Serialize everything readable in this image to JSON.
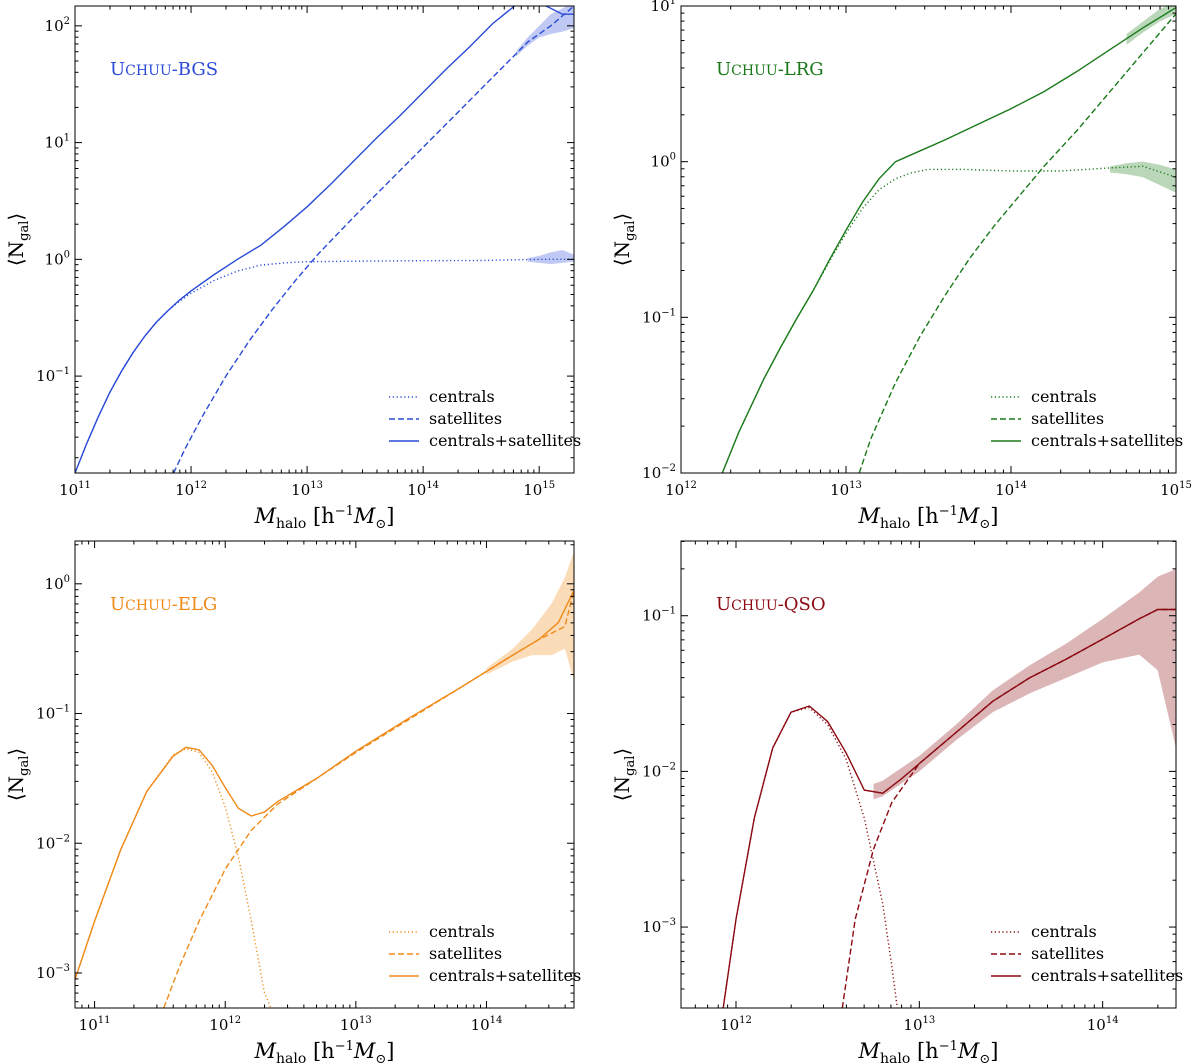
{
  "chart_data": [
    {
      "type": "line",
      "title": "Uchuu-BGS",
      "title_color": "#2a4bd7",
      "color": "#2a4bd7",
      "xlabel_parts": [
        "M",
        "halo",
        " [h",
        "−1",
        "M",
        "⊙",
        "]"
      ],
      "ylabel_parts": [
        "⟨N",
        "gal",
        "⟩"
      ],
      "xscale": "log",
      "yscale": "log",
      "xlim_log10": [
        11,
        15.3
      ],
      "ylim_log10": [
        -1.83,
        2.17
      ],
      "x_tick_labels": [
        {
          "base": "10",
          "exp": "11",
          "log": 11
        },
        {
          "base": "10",
          "exp": "12",
          "log": 12
        },
        {
          "base": "10",
          "exp": "13",
          "log": 13
        },
        {
          "base": "10",
          "exp": "14",
          "log": 14
        },
        {
          "base": "10",
          "exp": "15",
          "log": 15
        }
      ],
      "y_tick_labels": [
        {
          "base": "10",
          "exp": "−1",
          "log": -1
        },
        {
          "base": "10",
          "exp": "0",
          "log": 0
        },
        {
          "base": "10",
          "exp": "1",
          "log": 1
        },
        {
          "base": "10",
          "exp": "2",
          "log": 2
        }
      ],
      "legend_position": "lower-right",
      "series": [
        {
          "name": "centrals",
          "style": "dotted",
          "log_m": [
            11.0,
            11.1,
            11.2,
            11.3,
            11.4,
            11.5,
            11.6,
            11.7,
            11.8,
            11.9,
            12.0,
            12.2,
            12.4,
            12.6,
            12.8,
            13.0,
            13.5,
            14.0,
            14.5,
            15.0,
            15.3
          ],
          "log_n": [
            -1.83,
            -1.58,
            -1.35,
            -1.14,
            -0.96,
            -0.8,
            -0.66,
            -0.54,
            -0.44,
            -0.36,
            -0.29,
            -0.18,
            -0.1,
            -0.05,
            -0.03,
            -0.02,
            -0.015,
            -0.012,
            -0.01,
            0.0,
            0.0
          ]
        },
        {
          "name": "satellites",
          "style": "dashed",
          "log_m": [
            11.85,
            11.95,
            12.1,
            12.3,
            12.5,
            12.7,
            12.9,
            13.1,
            13.4,
            13.7,
            14.0,
            14.3,
            14.6,
            14.9,
            15.1,
            15.3
          ],
          "log_n": [
            -1.83,
            -1.62,
            -1.34,
            -1.0,
            -0.7,
            -0.43,
            -0.18,
            0.05,
            0.36,
            0.66,
            0.96,
            1.26,
            1.56,
            1.86,
            2.0,
            2.17
          ]
        },
        {
          "name": "centrals+satellites",
          "style": "solid",
          "log_m": [
            11.0,
            11.1,
            11.2,
            11.3,
            11.4,
            11.5,
            11.6,
            11.7,
            11.8,
            11.9,
            12.0,
            12.2,
            12.4,
            12.6,
            12.8,
            13.0,
            13.2,
            13.4,
            13.6,
            13.8,
            14.0,
            14.2,
            14.4,
            14.6,
            14.8,
            15.0,
            15.2,
            15.3
          ],
          "log_n": [
            -1.83,
            -1.58,
            -1.35,
            -1.14,
            -0.96,
            -0.8,
            -0.66,
            -0.54,
            -0.44,
            -0.35,
            -0.27,
            -0.13,
            0.0,
            0.12,
            0.28,
            0.45,
            0.64,
            0.84,
            1.04,
            1.23,
            1.43,
            1.63,
            1.82,
            2.02,
            2.18,
            2.2,
            2.1,
            2.1
          ]
        }
      ],
      "band": {
        "log_m": [
          14.8,
          14.9,
          15.0,
          15.1,
          15.2,
          15.3
        ],
        "log_lo": [
          1.74,
          1.83,
          1.9,
          1.93,
          1.95,
          1.98
        ],
        "log_hi": [
          1.78,
          1.9,
          2.0,
          2.1,
          2.15,
          2.2
        ]
      },
      "central_band": {
        "log_m": [
          14.9,
          15.0,
          15.1,
          15.2,
          15.3
        ],
        "log_lo": [
          -0.02,
          -0.03,
          -0.04,
          -0.03,
          -0.02
        ],
        "log_hi": [
          0.01,
          0.03,
          0.06,
          0.08,
          0.04
        ]
      }
    },
    {
      "type": "line",
      "title": "Uchuu-LRG",
      "title_color": "#1a7a1a",
      "color": "#1a7a1a",
      "xlabel_parts": [
        "M",
        "halo",
        " [h",
        "−1",
        "M",
        "⊙",
        "]"
      ],
      "ylabel_parts": [
        "⟨N",
        "gal",
        "⟩"
      ],
      "xscale": "log",
      "yscale": "log",
      "xlim_log10": [
        12,
        15
      ],
      "ylim_log10": [
        -2,
        1
      ],
      "x_tick_labels": [
        {
          "base": "10",
          "exp": "12",
          "log": 12
        },
        {
          "base": "10",
          "exp": "13",
          "log": 13
        },
        {
          "base": "10",
          "exp": "14",
          "log": 14
        },
        {
          "base": "10",
          "exp": "15",
          "log": 15
        }
      ],
      "y_tick_labels": [
        {
          "base": "10",
          "exp": "−2",
          "log": -2
        },
        {
          "base": "10",
          "exp": "−1",
          "log": -1
        },
        {
          "base": "10",
          "exp": "0",
          "log": 0
        },
        {
          "base": "10",
          "exp": "1",
          "log": 1
        }
      ],
      "legend_position": "lower-right",
      "series": [
        {
          "name": "centrals",
          "style": "dotted",
          "log_m": [
            12.25,
            12.35,
            12.5,
            12.6,
            12.7,
            12.8,
            12.9,
            13.0,
            13.1,
            13.2,
            13.3,
            13.4,
            13.5,
            13.7,
            14.0,
            14.3,
            14.6,
            14.8,
            15.0
          ],
          "log_n": [
            -2.0,
            -1.74,
            -1.4,
            -1.2,
            -1.01,
            -0.83,
            -0.64,
            -0.46,
            -0.3,
            -0.18,
            -0.11,
            -0.07,
            -0.05,
            -0.05,
            -0.06,
            -0.06,
            -0.04,
            -0.03,
            -0.1
          ]
        },
        {
          "name": "satellites",
          "style": "dashed",
          "log_m": [
            13.08,
            13.15,
            13.3,
            13.45,
            13.6,
            13.75,
            13.9,
            14.05,
            14.2,
            14.4,
            14.6,
            14.8,
            15.0
          ],
          "log_n": [
            -2.0,
            -1.78,
            -1.42,
            -1.12,
            -0.86,
            -0.62,
            -0.41,
            -0.22,
            -0.03,
            0.2,
            0.45,
            0.7,
            0.95
          ]
        },
        {
          "name": "centrals+satellites",
          "style": "solid",
          "log_m": [
            12.25,
            12.35,
            12.5,
            12.6,
            12.7,
            12.8,
            12.9,
            13.0,
            13.1,
            13.2,
            13.3,
            13.45,
            13.6,
            13.8,
            14.0,
            14.2,
            14.4,
            14.6,
            14.8,
            15.0
          ],
          "log_n": [
            -2.0,
            -1.74,
            -1.4,
            -1.2,
            -1.01,
            -0.83,
            -0.63,
            -0.44,
            -0.26,
            -0.11,
            0.0,
            0.07,
            0.14,
            0.24,
            0.34,
            0.45,
            0.58,
            0.72,
            0.86,
            0.99
          ]
        }
      ],
      "band": {
        "log_m": [
          14.7,
          14.8,
          14.9,
          15.0
        ],
        "log_lo": [
          0.75,
          0.83,
          0.9,
          0.95
        ],
        "log_hi": [
          0.82,
          0.9,
          0.98,
          1.02
        ]
      },
      "central_band": {
        "log_m": [
          14.6,
          14.7,
          14.8,
          14.9,
          15.0
        ],
        "log_lo": [
          -0.07,
          -0.08,
          -0.1,
          -0.15,
          -0.2
        ],
        "log_hi": [
          -0.03,
          -0.01,
          0.0,
          -0.02,
          -0.05
        ]
      }
    },
    {
      "type": "line",
      "title": "Uchuu-ELG",
      "title_color": "#f08a18",
      "color": "#f08a18",
      "xlabel_parts": [
        "M",
        "halo",
        " [h",
        "−1",
        "M",
        "⊙",
        "]"
      ],
      "ylabel_parts": [
        "⟨N",
        "gal",
        "⟩"
      ],
      "xscale": "log",
      "yscale": "log",
      "xlim_log10": [
        10.85,
        14.67
      ],
      "ylim_log10": [
        -3.27,
        0.33
      ],
      "x_tick_labels": [
        {
          "base": "10",
          "exp": "11",
          "log": 11
        },
        {
          "base": "10",
          "exp": "12",
          "log": 12
        },
        {
          "base": "10",
          "exp": "13",
          "log": 13
        },
        {
          "base": "10",
          "exp": "14",
          "log": 14
        }
      ],
      "y_tick_labels": [
        {
          "base": "10",
          "exp": "−3",
          "log": -3
        },
        {
          "base": "10",
          "exp": "−2",
          "log": -2
        },
        {
          "base": "10",
          "exp": "−1",
          "log": -1
        },
        {
          "base": "10",
          "exp": "0",
          "log": 0
        }
      ],
      "legend_position": "lower-right",
      "series": [
        {
          "name": "centrals",
          "style": "dotted",
          "log_m": [
            10.85,
            11.0,
            11.2,
            11.4,
            11.6,
            11.7,
            11.8,
            11.9,
            12.0,
            12.1,
            12.2,
            12.3,
            12.35
          ],
          "log_n": [
            -3.05,
            -2.6,
            -2.05,
            -1.6,
            -1.32,
            -1.27,
            -1.3,
            -1.45,
            -1.72,
            -2.1,
            -2.6,
            -3.15,
            -3.27
          ]
        },
        {
          "name": "satellites",
          "style": "dashed",
          "log_m": [
            11.53,
            11.65,
            11.8,
            12.0,
            12.2,
            12.4,
            12.7,
            13.0,
            13.4,
            13.8,
            14.2,
            14.4,
            14.6,
            14.67
          ],
          "log_n": [
            -3.27,
            -2.95,
            -2.6,
            -2.2,
            -1.9,
            -1.7,
            -1.5,
            -1.3,
            -1.05,
            -0.8,
            -0.55,
            -0.43,
            -0.33,
            -0.05
          ]
        },
        {
          "name": "centrals+satellites",
          "style": "solid",
          "log_m": [
            10.85,
            11.0,
            11.2,
            11.4,
            11.6,
            11.7,
            11.8,
            11.9,
            12.0,
            12.1,
            12.2,
            12.3,
            12.4,
            12.7,
            13.0,
            13.4,
            13.8,
            14.2,
            14.4,
            14.55,
            14.67
          ],
          "log_n": [
            -3.05,
            -2.6,
            -2.05,
            -1.6,
            -1.33,
            -1.26,
            -1.28,
            -1.4,
            -1.57,
            -1.73,
            -1.79,
            -1.76,
            -1.68,
            -1.5,
            -1.29,
            -1.04,
            -0.8,
            -0.55,
            -0.43,
            -0.3,
            -0.05
          ]
        }
      ],
      "band": {
        "log_m": [
          14.0,
          14.2,
          14.35,
          14.5,
          14.6,
          14.67
        ],
        "log_lo": [
          -0.7,
          -0.6,
          -0.55,
          -0.55,
          -0.5,
          -0.75
        ],
        "log_hi": [
          -0.65,
          -0.5,
          -0.35,
          -0.15,
          0.05,
          0.25
        ]
      }
    },
    {
      "type": "line",
      "title": "Uchuu-QSO",
      "title_color": "#8b0a12",
      "color": "#8b0a12",
      "xlabel_parts": [
        "M",
        "halo",
        " [h",
        "−1",
        "M",
        "⊙",
        "]"
      ],
      "ylabel_parts": [
        "⟨N",
        "gal",
        "⟩"
      ],
      "xscale": "log",
      "yscale": "log",
      "xlim_log10": [
        11.7,
        14.4
      ],
      "ylim_log10": [
        -3.52,
        -0.52
      ],
      "x_tick_labels": [
        {
          "base": "10",
          "exp": "12",
          "log": 12
        },
        {
          "base": "10",
          "exp": "13",
          "log": 13
        },
        {
          "base": "10",
          "exp": "14",
          "log": 14
        }
      ],
      "y_tick_labels": [
        {
          "base": "10",
          "exp": "−3",
          "log": -3
        },
        {
          "base": "10",
          "exp": "−2",
          "log": -2
        },
        {
          "base": "10",
          "exp": "−1",
          "log": -1
        }
      ],
      "legend_position": "lower-right",
      "series": [
        {
          "name": "centrals",
          "style": "dotted",
          "log_m": [
            11.93,
            12.0,
            12.1,
            12.2,
            12.3,
            12.4,
            12.5,
            12.6,
            12.7,
            12.8,
            12.85,
            12.88
          ],
          "log_n": [
            -3.52,
            -2.95,
            -2.3,
            -1.85,
            -1.62,
            -1.59,
            -1.7,
            -1.92,
            -2.3,
            -2.85,
            -3.25,
            -3.52
          ]
        },
        {
          "name": "satellites",
          "style": "dashed",
          "log_m": [
            12.58,
            12.65,
            12.75,
            12.85,
            13.0,
            13.2,
            13.4,
            13.6,
            13.8,
            14.0,
            14.2,
            14.3,
            14.4
          ],
          "log_n": [
            -3.52,
            -2.95,
            -2.5,
            -2.2,
            -1.95,
            -1.75,
            -1.55,
            -1.4,
            -1.28,
            -1.15,
            -1.02,
            -0.96,
            -0.96
          ]
        },
        {
          "name": "centrals+satellites",
          "style": "solid",
          "log_m": [
            11.93,
            12.0,
            12.1,
            12.2,
            12.3,
            12.4,
            12.5,
            12.6,
            12.7,
            12.8,
            12.9,
            13.0,
            13.2,
            13.4,
            13.6,
            13.8,
            14.0,
            14.2,
            14.3,
            14.4
          ],
          "log_n": [
            -3.52,
            -2.95,
            -2.3,
            -1.85,
            -1.62,
            -1.58,
            -1.68,
            -1.88,
            -2.12,
            -2.14,
            -2.05,
            -1.95,
            -1.75,
            -1.55,
            -1.4,
            -1.28,
            -1.15,
            -1.02,
            -0.96,
            -0.96
          ]
        }
      ],
      "band": {
        "log_m": [
          12.75,
          12.8,
          13.0,
          13.2,
          13.4,
          13.6,
          13.8,
          14.0,
          14.2,
          14.3,
          14.4
        ],
        "log_lo": [
          -2.18,
          -2.16,
          -2.0,
          -1.8,
          -1.62,
          -1.5,
          -1.4,
          -1.3,
          -1.25,
          -1.35,
          -1.85
        ],
        "log_hi": [
          -2.08,
          -2.06,
          -1.9,
          -1.7,
          -1.48,
          -1.32,
          -1.18,
          -1.02,
          -0.85,
          -0.75,
          -0.7
        ]
      }
    }
  ]
}
